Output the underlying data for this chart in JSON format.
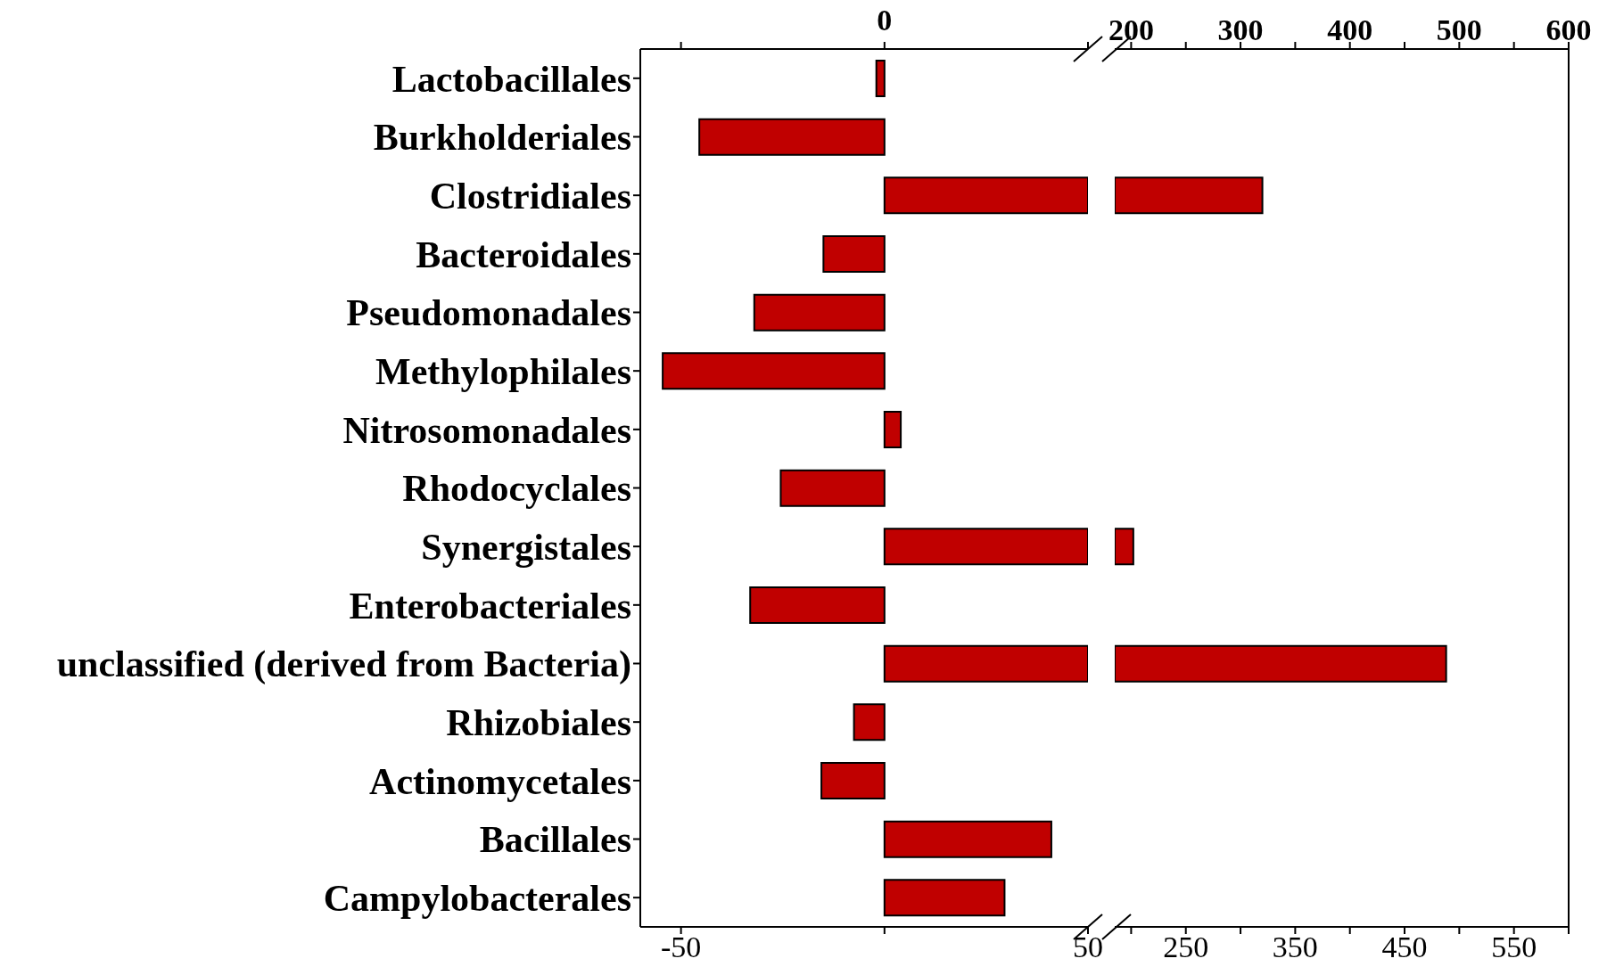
{
  "chart_data": [
    {
      "type": "bar",
      "orientation": "horizontal",
      "color": "#c00000",
      "categories": [
        "Lactobacillales",
        "Burkholderiales",
        "Clostridiales",
        "Bacteroidales",
        "Pseudomonadales",
        "Methylophilales",
        "Nitrosomonadales",
        "Rhodocyclales",
        "Synergistales",
        "Enterobacteriales",
        "unclassified (derived from Bacteria)",
        "Rhizobiales",
        "Actinomycetales",
        "Bacillales",
        "Campylobacterales"
      ],
      "values": [
        -2,
        -45.5,
        50,
        -15,
        -32,
        -54.5,
        4,
        -25.5,
        50,
        -33,
        50,
        -7.5,
        -15.5,
        41,
        29.5
      ],
      "xlim": [
        -60,
        50
      ],
      "xticks": [
        -50,
        {
          "value": 0,
          "label": null
        },
        50
      ],
      "annotations": [
        "0"
      ]
    },
    {
      "type": "bar",
      "orientation": "horizontal",
      "color": "#c00000",
      "tick_labels": "x",
      "categories": [
        null,
        null,
        null,
        null,
        null,
        null,
        null,
        null,
        null,
        null,
        null,
        null,
        null,
        null,
        null
      ],
      "base": [
        null,
        null,
        185,
        null,
        null,
        null,
        null,
        null,
        185,
        null,
        185,
        null,
        null,
        null,
        null
      ],
      "values": [
        null,
        null,
        135,
        null,
        null,
        null,
        null,
        null,
        17,
        null,
        303,
        null,
        null,
        null,
        null
      ],
      "xlim": [
        185,
        600
      ],
      "xticks": [
        {
          "value": 200,
          "label": null
        },
        250,
        {
          "value": 300,
          "label": null
        },
        350,
        {
          "value": 400,
          "label": null
        },
        450,
        {
          "value": 500,
          "label": null
        },
        550,
        {
          "value": 600,
          "label": null
        }
      ],
      "x2lim": [
        185,
        600
      ],
      "x2ticks": [
        200,
        {
          "value": 250,
          "label": null
        },
        300,
        {
          "value": 350,
          "label": null
        },
        400,
        {
          "value": 450,
          "label": null
        },
        500,
        {
          "value": 550,
          "label": null
        },
        600
      ]
    }
  ]
}
